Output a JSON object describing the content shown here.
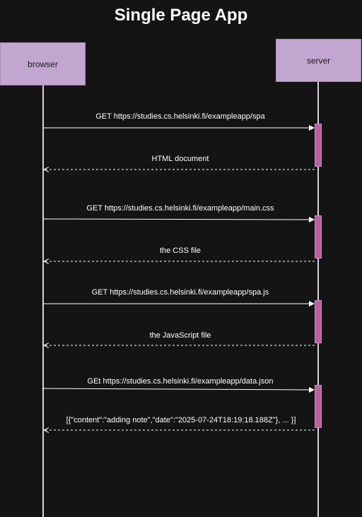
{
  "title": "Single Page App",
  "participants": {
    "browser": "browser",
    "server": "server"
  },
  "messages": [
    {
      "text": "GET https://studies.cs.helsinki.fi/exampleapp/spa",
      "direction": "request"
    },
    {
      "text": "HTML document",
      "direction": "response"
    },
    {
      "text": "GET https://studies.cs.helsinki.fi/exampleapp/main.css",
      "direction": "request"
    },
    {
      "text": "the CSS file",
      "direction": "response"
    },
    {
      "text": "GET https://studies.cs.helsinki.fi/exampleapp/spa.js",
      "direction": "request"
    },
    {
      "text": "the JavaScript file",
      "direction": "response"
    },
    {
      "text": "GEt https://studies.cs.helsinki.fi/exampleapp/data.json",
      "direction": "request"
    },
    {
      "text": "[{\"content\":\"adding note\",\"date\":\"2025-07-24T18:19:18.188Z\"}, ... }]",
      "direction": "response"
    }
  ],
  "colors": {
    "background": "#141414",
    "participant_fill": "#c3a6cf",
    "activation_fill": "#b5639a",
    "line": "#ffffff",
    "lifeline": "#ddd0e3"
  }
}
